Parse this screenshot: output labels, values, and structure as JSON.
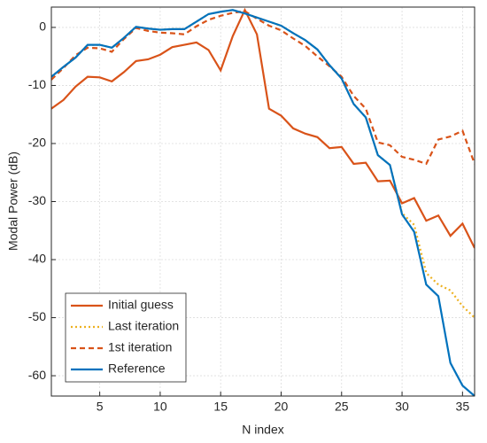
{
  "chart_data": {
    "type": "line",
    "x_label": "N index",
    "y_label": "Modal Power (dB)",
    "x": [
      1,
      2,
      3,
      4,
      5,
      6,
      7,
      8,
      9,
      10,
      11,
      12,
      13,
      14,
      15,
      16,
      17,
      18,
      19,
      20,
      21,
      22,
      23,
      24,
      25,
      26,
      27,
      28,
      29,
      30,
      31,
      32,
      33,
      34,
      35,
      36
    ],
    "series": [
      {
        "name": "Initial guess",
        "color": "#d95319",
        "dash": "solid",
        "values": [
          -14,
          -12.5,
          -10.2,
          -8.5,
          -8.6,
          -9.3,
          -7.7,
          -5.8,
          -5.5,
          -4.7,
          -3.4,
          -3.0,
          -2.6,
          -3.9,
          -7.4,
          -1.5,
          3.0,
          -1.2,
          -14,
          -15.2,
          -17.4,
          -18.3,
          -18.9,
          -20.8,
          -20.6,
          -23.5,
          -23.3,
          -26.5,
          -26.4,
          -30.3,
          -29.4,
          -33.3,
          -32.4,
          -35.9,
          -33.8,
          -38
        ]
      },
      {
        "name": "Last iteration",
        "color": "#edb120",
        "dash": "dotted",
        "values": [
          -8.5,
          -6.8,
          -5.2,
          -3.0,
          -3.0,
          -3.5,
          -1.8,
          0.1,
          -0.2,
          -0.4,
          -0.3,
          -0.3,
          1.0,
          2.3,
          2.7,
          3.0,
          2.4,
          1.7,
          1.0,
          0.3,
          -1.0,
          -2.2,
          -3.8,
          -6.5,
          -8.8,
          -13.2,
          -15.5,
          -22.0,
          -23.7,
          -32,
          -34,
          -42.3,
          -44.3,
          -45.3,
          -48,
          -50
        ]
      },
      {
        "name": "1st iteration",
        "color": "#d95319",
        "dash": "dashed",
        "values": [
          -9,
          -7,
          -4.8,
          -3.5,
          -3.6,
          -4.2,
          -2,
          -0.1,
          -0.6,
          -0.9,
          -1.0,
          -1.2,
          0.2,
          1.3,
          2.0,
          2.5,
          2.8,
          1.5,
          0.3,
          -0.5,
          -1.9,
          -3.2,
          -5,
          -6.7,
          -8.5,
          -11.8,
          -14,
          -19.8,
          -20.3,
          -22.3,
          -22.8,
          -23.5,
          -19.3,
          -18.8,
          -17.8,
          -23.5
        ]
      },
      {
        "name": "Reference",
        "color": "#0072bd",
        "dash": "solid",
        "values": [
          -8.5,
          -6.8,
          -5.2,
          -3.0,
          -3.0,
          -3.5,
          -1.8,
          0.1,
          -0.2,
          -0.4,
          -0.3,
          -0.3,
          1.0,
          2.3,
          2.7,
          3.0,
          2.4,
          1.7,
          1.0,
          0.3,
          -1.0,
          -2.2,
          -3.8,
          -6.5,
          -8.8,
          -13.2,
          -15.5,
          -22.0,
          -23.7,
          -32.2,
          -35.2,
          -44.3,
          -46.3,
          -57.8,
          -61.7,
          -63.5
        ]
      }
    ],
    "xlim": [
      1,
      36
    ],
    "xticks": [
      5,
      10,
      15,
      20,
      25,
      30,
      35
    ],
    "ylim": [
      -63.5,
      3.5
    ],
    "yticks": [
      -60,
      -50,
      -40,
      -30,
      -20,
      -10,
      0
    ],
    "grid": true,
    "legend": "lower left"
  }
}
